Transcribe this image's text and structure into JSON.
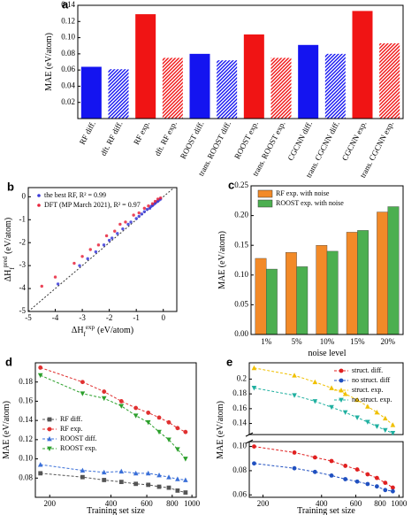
{
  "chart_data": [
    {
      "type": "bar",
      "panel": "a",
      "y_label": "MAE (eV/atom)",
      "categories": [
        "RF diff.",
        "dft. RF diff.",
        "RF exp.",
        "dft. RF exp.",
        "ROOST diff.",
        "trans. ROOST diff.",
        "ROOST exp.",
        "trans. ROOST exp.",
        "CGCNN diff.",
        "trans. CGCNN diff.",
        "CGCNN exp.",
        "trans. CGCNN exp."
      ],
      "values": [
        0.064,
        0.061,
        0.129,
        0.075,
        0.08,
        0.072,
        0.104,
        0.075,
        0.091,
        0.08,
        0.133,
        0.093
      ],
      "colors": [
        "#1414f0",
        "#1414f0",
        "#f01414",
        "#f01414",
        "#1414f0",
        "#1414f0",
        "#f01414",
        "#f01414",
        "#1414f0",
        "#1414f0",
        "#f01414",
        "#f01414"
      ],
      "hatched": [
        false,
        true,
        false,
        true,
        false,
        true,
        false,
        true,
        false,
        true,
        false,
        true
      ],
      "ylim": [
        0,
        0.14
      ],
      "yticks": [
        0.02,
        0.04,
        0.06,
        0.08,
        {
          "value": 0.1,
          "label": "0.10"
        },
        0.12,
        0.14
      ]
    },
    {
      "type": "scatter",
      "panel": "b",
      "x_label": "ΔH",
      "x_label_sub": "f",
      "x_label_sup": "exp",
      "x_label_unit": "(eV/atom)",
      "y_label": "ΔH",
      "y_label_sub": "f",
      "y_label_sup": "pred",
      "y_label_unit": "(eV/atom)",
      "xlim": [
        -5,
        0.5
      ],
      "xticks": [
        -5,
        -4,
        -3,
        -2,
        -1,
        0
      ],
      "ylim": [
        -5,
        0.4
      ],
      "yticks": [
        -5,
        -4,
        -3,
        -2,
        -1,
        0
      ],
      "diagonal": true,
      "legend": "upper left",
      "series": [
        {
          "name": "the best RF, R² = 0.99",
          "color": "#3a3ad8",
          "x": [
            -3.9,
            -3.1,
            -2.8,
            -2.5,
            -2.2,
            -2.0,
            -1.9,
            -1.7,
            -1.5,
            -1.3,
            -1.2,
            -1.0,
            -0.9,
            -0.8,
            -0.7,
            -0.6,
            -0.5,
            -0.45,
            -0.4,
            -0.35,
            -0.3,
            -0.25,
            -0.2,
            -0.15,
            -0.1
          ],
          "y": [
            -3.8,
            -3.0,
            -2.7,
            -2.4,
            -2.1,
            -1.9,
            -1.8,
            -1.6,
            -1.4,
            -1.2,
            -1.1,
            -0.95,
            -0.85,
            -0.75,
            -0.65,
            -0.55,
            -0.5,
            -0.42,
            -0.38,
            -0.33,
            -0.28,
            -0.22,
            -0.2,
            -0.14,
            -0.1
          ]
        },
        {
          "name": "DFT (MP March 2021), R² = 0.97",
          "color": "#e8243c",
          "x": [
            -4.5,
            -4.0,
            -3.3,
            -3.0,
            -2.7,
            -2.4,
            -2.1,
            -1.8,
            -1.6,
            -1.4,
            -1.1,
            -0.9,
            -0.7,
            -0.55,
            -0.4,
            -0.3,
            -0.2,
            -0.1
          ],
          "y": [
            -3.9,
            -3.5,
            -2.9,
            -2.6,
            -2.3,
            -2.1,
            -1.7,
            -1.5,
            -1.2,
            -1.1,
            -0.8,
            -0.7,
            -0.5,
            -0.4,
            -0.3,
            -0.2,
            -0.1,
            -0.05
          ]
        }
      ]
    },
    {
      "type": "bar",
      "panel": "c",
      "x_label": "noise level",
      "y_label": "MAE (eV/atom)",
      "categories": [
        "1%",
        "5%",
        "10%",
        "15%",
        "20%"
      ],
      "ylim": [
        0,
        0.25
      ],
      "yticks": [
        {
          "value": 0,
          "label": "0.00"
        },
        0.05,
        {
          "value": 0.1,
          "label": "0.10"
        },
        0.15,
        {
          "value": 0.2,
          "label": "0.20"
        },
        0.25
      ],
      "legend": "upper left",
      "series": [
        {
          "name": "RF exp. with noise",
          "color": "#f28a28",
          "values": [
            0.128,
            0.138,
            0.15,
            0.172,
            0.206
          ]
        },
        {
          "name": "ROOST exp. with noise",
          "color": "#4caf50",
          "values": [
            0.11,
            0.114,
            0.14,
            0.175,
            0.215
          ]
        }
      ]
    },
    {
      "type": "line",
      "panel": "d",
      "x_label": "Training set size",
      "y_label": "MAE (eV/atom)",
      "xscale": "log",
      "xlim": [
        170,
        1050
      ],
      "xticks": [
        200,
        400,
        600,
        800,
        1000
      ],
      "ylim": [
        0.06,
        0.2
      ],
      "yticks": [
        0.08,
        {
          "value": 0.1,
          "label": "0.10"
        },
        0.12,
        0.14,
        0.16,
        0.18
      ],
      "line_style": "dashed",
      "legend": "center left",
      "x": [
        180,
        290,
        370,
        450,
        530,
        610,
        690,
        770,
        850,
        930
      ],
      "series": [
        {
          "name": "RF diff.",
          "color": "#555555",
          "marker": "square",
          "values": [
            0.085,
            0.081,
            0.078,
            0.076,
            0.074,
            0.073,
            0.071,
            0.07,
            0.067,
            0.065
          ]
        },
        {
          "name": "RF exp.",
          "color": "#e03030",
          "marker": "circle",
          "values": [
            0.195,
            0.18,
            0.17,
            0.16,
            0.153,
            0.148,
            0.143,
            0.138,
            0.132,
            0.128
          ]
        },
        {
          "name": "ROOST diff.",
          "color": "#3a6fd8",
          "marker": "triangle-up",
          "values": [
            0.094,
            0.088,
            0.086,
            0.087,
            0.085,
            0.085,
            0.083,
            0.081,
            0.079,
            0.078
          ]
        },
        {
          "name": "ROOST exp.",
          "color": "#2ca02c",
          "marker": "triangle-down",
          "values": [
            0.187,
            0.168,
            0.163,
            0.155,
            0.145,
            0.138,
            0.128,
            0.12,
            0.11,
            0.1
          ]
        }
      ]
    },
    {
      "type": "line",
      "panel": "e",
      "x_label": "Training set size",
      "y_label": "MAE (eV/atom)",
      "xscale": "log",
      "xlim": [
        170,
        1050
      ],
      "xticks": [
        200,
        400,
        600,
        800,
        1000
      ],
      "ylim": [
        0.058,
        0.104
      ],
      "yticks": [
        0.06,
        0.08,
        {
          "value": 0.1,
          "label": "0.10"
        }
      ],
      "ylim_upper": [
        0.125,
        0.222
      ],
      "yticks_upper": [
        0.14,
        0.16,
        0.18,
        0.2
      ],
      "line_style": "dashed",
      "legend": "upper right",
      "x": [
        180,
        290,
        370,
        450,
        530,
        610,
        690,
        770,
        850,
        930
      ],
      "series": [
        {
          "name": "struct. diff.",
          "color": "#e02020",
          "marker": "circle",
          "values": [
            0.1,
            0.095,
            0.091,
            0.088,
            0.084,
            0.081,
            0.077,
            0.074,
            0.07,
            0.066
          ]
        },
        {
          "name": "no struct. diff",
          "color": "#2050c0",
          "marker": "circle",
          "values": [
            0.086,
            0.082,
            0.079,
            0.076,
            0.073,
            0.071,
            0.069,
            0.067,
            0.064,
            0.063
          ]
        },
        {
          "name": "struct. exp.",
          "color": "#f0c000",
          "marker": "triangle-up",
          "values": [
            0.215,
            0.205,
            0.196,
            0.188,
            0.18,
            0.172,
            0.163,
            0.155,
            0.147,
            0.138
          ]
        },
        {
          "name": "no struct. exp.",
          "color": "#20b0a0",
          "marker": "triangle-down",
          "values": [
            0.188,
            0.178,
            0.17,
            0.162,
            0.155,
            0.148,
            0.142,
            0.136,
            0.131,
            0.127
          ]
        }
      ]
    }
  ]
}
